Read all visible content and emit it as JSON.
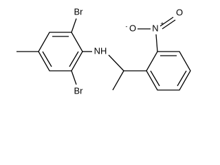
{
  "atoms": [
    {
      "label": "Br"
    },
    {
      "label": "Br"
    },
    {
      "label": "NH"
    },
    {
      "label": "N",
      "charge": "+"
    },
    {
      "label": "O"
    },
    {
      "label": "O",
      "charge": "-"
    }
  ]
}
